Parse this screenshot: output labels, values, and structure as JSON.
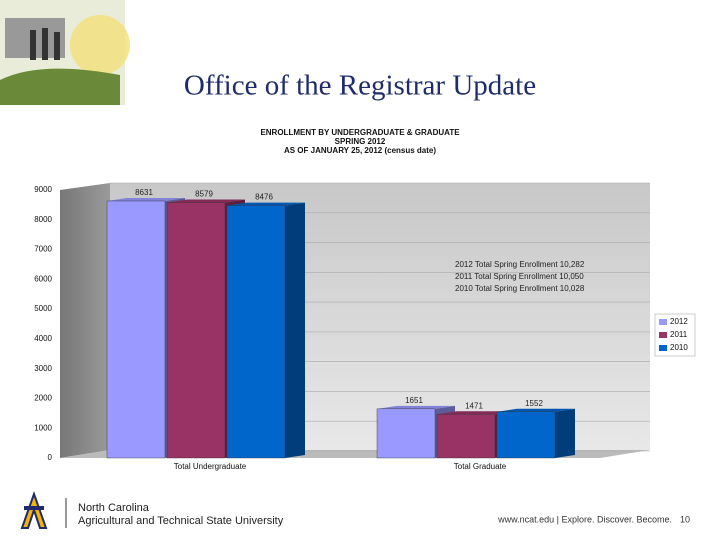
{
  "slide": {
    "title": "Office of the Registrar Update"
  },
  "footer": {
    "institution": [
      "North Carolina",
      "Agricultural and Technical State University"
    ],
    "url": "www.ncat.edu | Explore. Discover. Become.",
    "page": "10"
  },
  "chart_data": {
    "type": "bar",
    "title": [
      "ENROLLMENT BY UNDERGRADUATE  & GRADUATE",
      "SPRING 2012",
      "AS OF JANUARY  25, 2012 (census date)"
    ],
    "categories": [
      "Total Undergraduate",
      "Total Graduate"
    ],
    "series": [
      {
        "name": "2012",
        "color": "#9999ff",
        "values": [
          8631,
          1651
        ]
      },
      {
        "name": "2011",
        "color": "#993366",
        "values": [
          8579,
          1471
        ]
      },
      {
        "name": "2010",
        "color": "#0066cc",
        "values": [
          8476,
          1552
        ]
      }
    ],
    "annotations": [
      "2012 Total Spring Enrollment 10,282",
      "2011 Total Spring Enrollment 10,050",
      "2010 Total Spring Enrollment 10,028"
    ],
    "ylim": [
      0,
      9000
    ],
    "yticks": [
      0,
      1000,
      2000,
      3000,
      4000,
      5000,
      6000,
      7000,
      8000,
      9000
    ],
    "grid": true,
    "legend": "right"
  }
}
